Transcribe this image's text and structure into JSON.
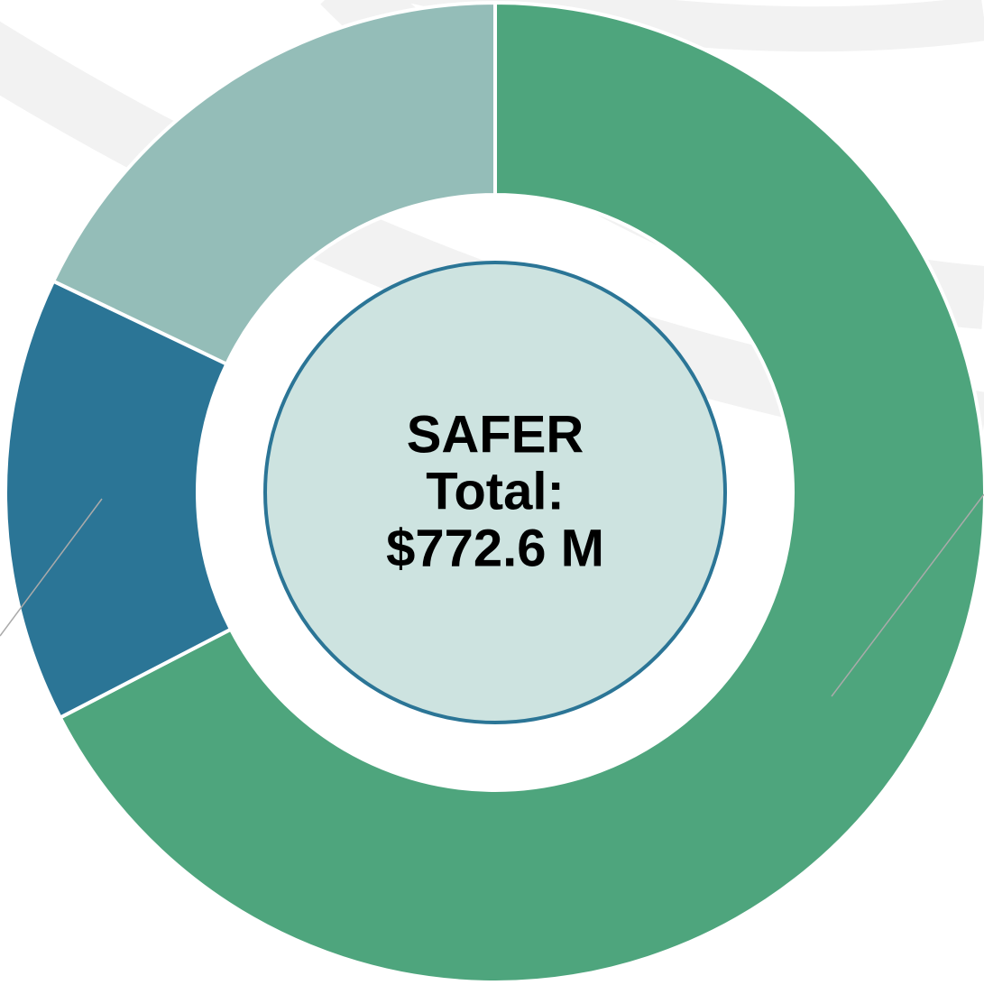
{
  "chart_data": {
    "type": "donut",
    "center_label": [
      "SAFER",
      "Total:",
      "$772.6 M"
    ],
    "categories": [
      null,
      null,
      null
    ],
    "values": [
      67.4,
      14.7,
      17.9
    ],
    "colors": [
      "#4ea57d",
      "#2b7596",
      "#94bdb8"
    ],
    "start_angle": 0,
    "direction": "clockwise"
  }
}
